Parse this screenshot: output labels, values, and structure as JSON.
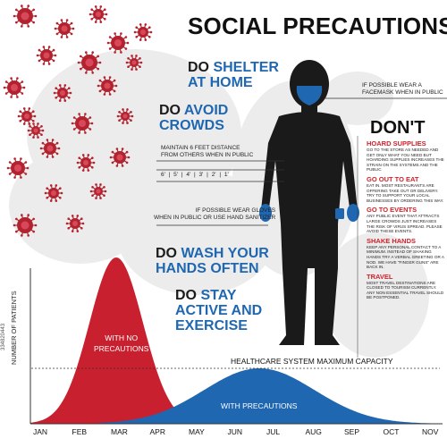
{
  "title": "SOCIAL PRECAUTIONS",
  "do_items": [
    {
      "do": "DO",
      "rest1": "SHELTER",
      "rest2": "AT HOME"
    },
    {
      "do": "DO",
      "rest1": "AVOID",
      "rest2": "CROWDS"
    },
    {
      "do": "DO",
      "rest1": "WASH YOUR",
      "rest2": "HANDS OFTEN"
    },
    {
      "do": "DO",
      "rest1": "STAY",
      "rest2": "ACTIVE AND",
      "rest3": "EXERCISE"
    }
  ],
  "notes": {
    "facemask": [
      "IF POSSIBLE WEAR A",
      "FACEMASK WHEN IN PUBLIC"
    ],
    "distance": [
      "MAINTAIN 6 FEET DISTANCE",
      "FROM OTHERS WHEN IN PUBLIC"
    ],
    "ruler": [
      "6'",
      "5'",
      "4'",
      "3'",
      "2'",
      "1'"
    ],
    "gloves": [
      "IF POSSIBLE WEAR GLOVES",
      "WHEN IN PUBLIC OR USE HAND SANITIZER"
    ]
  },
  "dont": {
    "title": "DON'T",
    "items": [
      {
        "head": "HOARD SUPPLIES",
        "body": "GO TO THE STORE AS NEEDED AND GET ONLY WHAT YOU NEED BUT HOARDING SUPPLIES INCREASES THE STRAIN ON THE SYSTEMS AND THE PUBLIC"
      },
      {
        "head": "GO OUT TO EAT",
        "body": "EAT IN. MOST RESTAURANTS ARE OFFERING TAKE OUT OR DELIVERY. TRY TO SUPPORT YOUR LOCAL BUSINESSES BY ORDERING THIS WAY."
      },
      {
        "head": "GO TO EVENTS",
        "body": "ANY PUBLIC EVENT THAT ATTRACTS LARGE CROWDS JUST INCREASES THE RISK OF VIRUS SPREAD. PLEASE AVOID THESE EVENTS."
      },
      {
        "head": "SHAKE HANDS",
        "body": "KEEP ANY PERSONAL CONTACT TO A MINIMUM. INSTEAD OF SHAKING HANDS TRY A VERBAL GREETING OR A NOD. WE HAVE \"FINGER GUNS\" ARE BACK IN."
      },
      {
        "head": "TRAVEL",
        "body": "MOST TRAVEL DESTINATIONS ARE CLOSED TO TOURISM CURRENTLY. ANY NON ESSENTIAL TRAVEL SHOULD BE POSTPONED."
      }
    ]
  },
  "chart": {
    "ylabel": "NUMBER OF PATIENTS",
    "capacity_label": "HEALTHCARE SYSTEM MAXIMUM CAPACITY",
    "no_precautions_label": [
      "WITH NO",
      "PRECAUTIONS"
    ],
    "with_precautions_label": "WITH PRECAUTIONS",
    "months": [
      "JAN",
      "FEB",
      "MAR",
      "APR",
      "MAY",
      "JUN",
      "JUL",
      "AUG",
      "SEP",
      "OCT",
      "NOV"
    ],
    "red_color": "#c8202e",
    "blue_color": "#1f67b1"
  },
  "watermark": "334820443"
}
